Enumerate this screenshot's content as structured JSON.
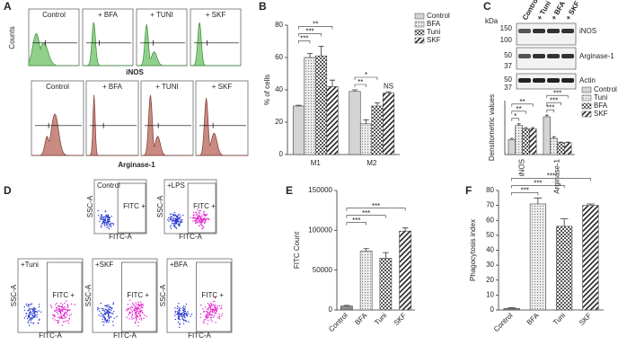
{
  "panel_labels": [
    "A",
    "B",
    "C",
    "D",
    "E",
    "F"
  ],
  "flow_histograms": {
    "ylabel": "Counts",
    "top_xlabel": "iNOS",
    "bottom_xlabel": "Arginase-1",
    "top_panels": [
      "Control",
      "+ BFA",
      "+ TUNI",
      "+ SKF"
    ],
    "bottom_panels": [
      "Control",
      "+ BFA",
      "+ TUNI",
      "+ SKF"
    ]
  },
  "western_blot": {
    "unit": "kDa",
    "lanes": [
      "Control",
      "+ Tuni",
      "+ BFA",
      "+ SKF"
    ],
    "markers": [
      "150",
      "100",
      "50",
      "37",
      "50",
      "37"
    ],
    "proteins": [
      "iNOS",
      "Arginase-1",
      "Actin"
    ]
  },
  "flow_scatter": {
    "panels": [
      "Control",
      "+LPS",
      "+Tuni",
      "+SKF",
      "+BFA"
    ],
    "gate_label": "FITC +",
    "xlabel": "FITC-A",
    "ylabel": "SSC-A"
  },
  "chart_data": [
    {
      "type": "bar",
      "ylabel": "% of cells",
      "categories": [
        "M1",
        "M2"
      ],
      "series": [
        {
          "name": "Control",
          "color": "#d4d4d4",
          "pattern": "solid",
          "values": [
            30,
            39
          ],
          "errors": [
            0.5,
            1
          ]
        },
        {
          "name": "BFA",
          "color": "#ececec",
          "pattern": "dots",
          "values": [
            60,
            19
          ],
          "errors": [
            2.5,
            2.5
          ]
        },
        {
          "name": "Tuni",
          "color": "#ffffff",
          "pattern": "checker",
          "values": [
            61,
            30
          ],
          "errors": [
            6,
            2
          ]
        },
        {
          "name": "SKF",
          "color": "#ffffff",
          "pattern": "hatch",
          "values": [
            42,
            38
          ],
          "errors": [
            4,
            0.8
          ]
        }
      ],
      "ylim": [
        0,
        80
      ],
      "yticks": [
        0,
        20,
        40,
        60,
        80
      ],
      "legend": "right",
      "annotations": [
        "***",
        "***",
        "**",
        "**",
        "*",
        "NS"
      ]
    },
    {
      "type": "bar",
      "ylabel": "Densitometric values",
      "categories": [
        "iNOS",
        "Arginase-1"
      ],
      "series": [
        {
          "name": "Control",
          "color": "#d4d4d4",
          "pattern": "solid",
          "values": [
            1.4,
            3.5
          ],
          "errors": [
            0.1,
            0.15
          ]
        },
        {
          "name": "Tuni",
          "color": "#ececec",
          "pattern": "dots",
          "values": [
            2.7,
            1.5
          ],
          "errors": [
            0.15,
            0.15
          ]
        },
        {
          "name": "BFA",
          "color": "#ffffff",
          "pattern": "checker",
          "values": [
            2.4,
            1.1
          ],
          "errors": [
            0.1,
            0.05
          ]
        },
        {
          "name": "SKF",
          "color": "#ffffff",
          "pattern": "hatch",
          "values": [
            2.4,
            1.1
          ],
          "errors": [
            0.1,
            0.05
          ]
        }
      ],
      "ylim": [
        0,
        5
      ],
      "legend": "right",
      "annotations": [
        "*",
        "**",
        "**",
        "***",
        "***",
        "***"
      ]
    },
    {
      "type": "bar",
      "ylabel": "FITC Count",
      "categories": [
        "Control",
        "BFA",
        "Tuni",
        "SKF"
      ],
      "values": [
        5000,
        74000,
        65000,
        99000
      ],
      "errors": [
        800,
        3000,
        7000,
        4000
      ],
      "colors": [
        "#8c8c8c",
        "#ececec",
        "#ffffff",
        "#ffffff"
      ],
      "patterns": [
        "solid",
        "dots",
        "checker",
        "hatch"
      ],
      "ylim": [
        0,
        150000
      ],
      "yticks": [
        0,
        50000,
        100000,
        150000
      ],
      "annotations": [
        "***",
        "***",
        "***"
      ]
    },
    {
      "type": "bar",
      "ylabel": "Phagocytosis index",
      "categories": [
        "Control",
        "BFA",
        "Tuni",
        "SKF"
      ],
      "values": [
        1,
        71,
        56,
        70
      ],
      "errors": [
        0.5,
        4,
        5,
        1
      ],
      "colors": [
        "#8c8c8c",
        "#ececec",
        "#ffffff",
        "#ffffff"
      ],
      "patterns": [
        "solid",
        "dots",
        "checker",
        "hatch"
      ],
      "ylim": [
        0,
        80
      ],
      "yticks": [
        0,
        10,
        20,
        30,
        40,
        50,
        60,
        70,
        80
      ],
      "annotations": [
        "***",
        "***",
        "***"
      ]
    }
  ]
}
